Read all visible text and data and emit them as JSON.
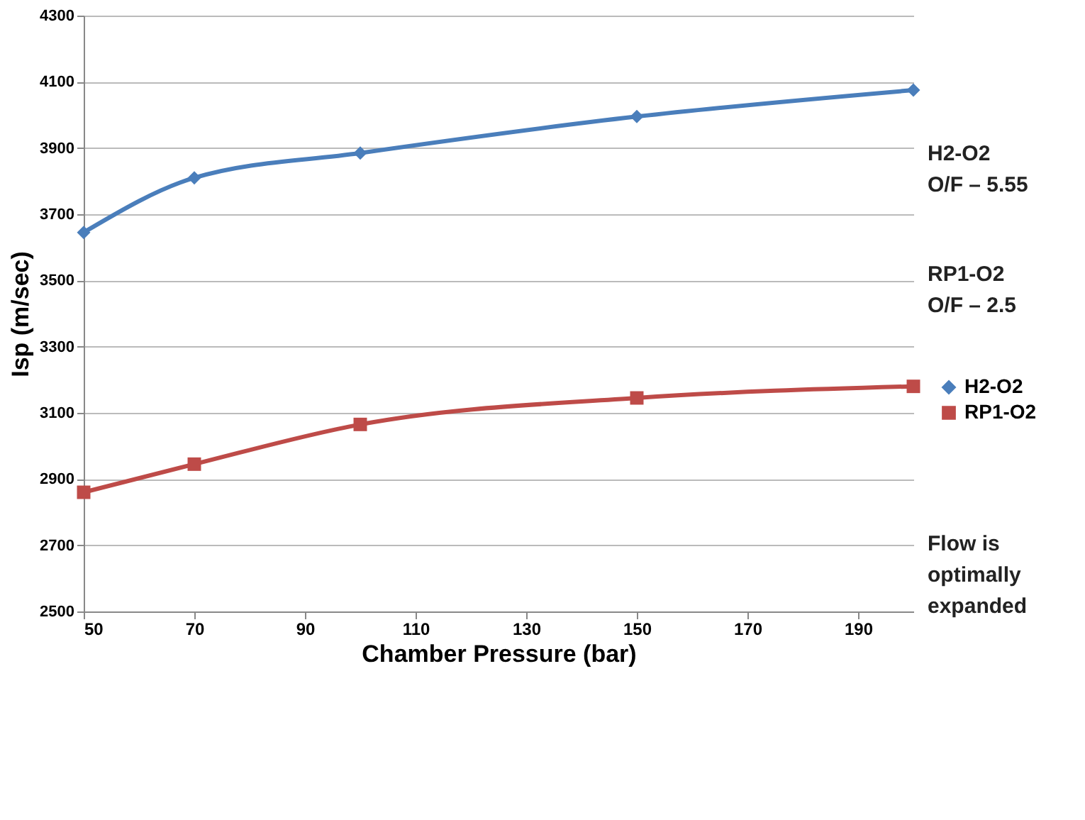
{
  "chart_data": {
    "type": "line",
    "xlabel": "Chamber Pressure (bar)",
    "ylabel": "Isp (m/sec)",
    "x": [
      50,
      70,
      100,
      150,
      200
    ],
    "series": [
      {
        "name": "H2-O2",
        "color": "#4a7ebb",
        "marker": "diamond",
        "values": [
          3645,
          3810,
          3885,
          3995,
          4075
        ]
      },
      {
        "name": "RP1-O2",
        "color": "#be4b48",
        "marker": "square",
        "values": [
          2860,
          2945,
          3065,
          3145,
          3180
        ]
      }
    ],
    "xlim": [
      50,
      200
    ],
    "xticks": [
      50,
      70,
      90,
      110,
      130,
      150,
      170,
      190
    ],
    "ylim": [
      2500,
      4300
    ],
    "yticks": [
      2500,
      2700,
      2900,
      3100,
      3300,
      3500,
      3700,
      3900,
      4100,
      4300
    ],
    "grid": "y",
    "legend": "right",
    "line_style": "solid",
    "annotations": [
      "H2-O2\nO/F – 5.55",
      "RP1-O2\nO/F – 2.5",
      "Flow is\noptimally\nexpanded"
    ]
  }
}
